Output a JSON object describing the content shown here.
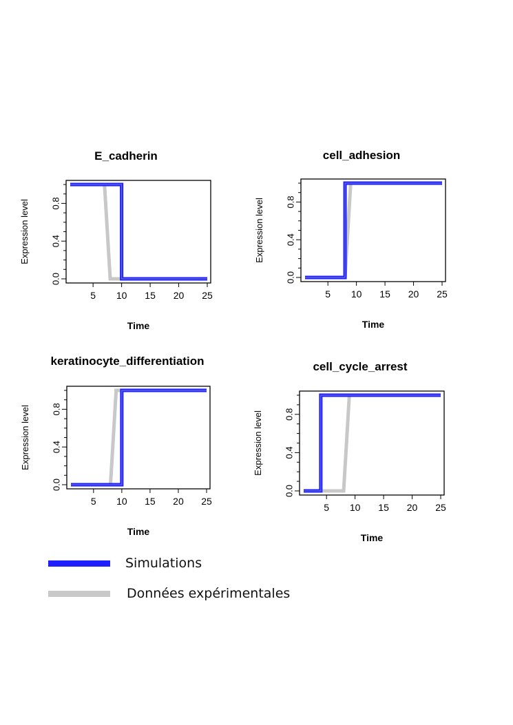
{
  "chart_data": [
    {
      "type": "line",
      "title": "E_cadherin",
      "xlabel": "Time",
      "ylabel": "Expression level",
      "xticks": [
        5,
        10,
        15,
        20,
        25
      ],
      "yticks": [
        0.0,
        0.4,
        0.8
      ],
      "ytick_labels": [
        "0.0",
        "0.4",
        "0.8"
      ],
      "xlim": [
        1,
        25
      ],
      "ylim": [
        0,
        1
      ],
      "series": [
        {
          "name": "Simulations",
          "x": [
            1,
            10,
            10,
            25
          ],
          "y": [
            1,
            1,
            0,
            0
          ]
        },
        {
          "name": "Données expérimentales",
          "x": [
            1,
            7,
            8,
            25
          ],
          "y": [
            1,
            1,
            0,
            0
          ]
        }
      ]
    },
    {
      "type": "line",
      "title": "cell_adhesion",
      "xlabel": "Time",
      "ylabel": "Expression level",
      "xticks": [
        5,
        10,
        15,
        20,
        25
      ],
      "yticks": [
        0.0,
        0.4,
        0.8
      ],
      "ytick_labels": [
        "0.0",
        "0.4",
        "0.8"
      ],
      "xlim": [
        1,
        25
      ],
      "ylim": [
        0,
        1
      ],
      "series": [
        {
          "name": "Simulations",
          "x": [
            1,
            8,
            8,
            25
          ],
          "y": [
            0,
            0,
            1,
            1
          ]
        },
        {
          "name": "Données expérimentales",
          "x": [
            1,
            8,
            9,
            25
          ],
          "y": [
            0,
            0,
            1,
            1
          ]
        }
      ]
    },
    {
      "type": "line",
      "title": "keratinocyte_differentiation",
      "xlabel": "Time",
      "ylabel": "Expression level",
      "xticks": [
        5,
        10,
        15,
        20,
        25
      ],
      "yticks": [
        0.0,
        0.4,
        0.8
      ],
      "ytick_labels": [
        "0.0",
        "0.4",
        "0.8"
      ],
      "xlim": [
        1,
        25
      ],
      "ylim": [
        0,
        1
      ],
      "series": [
        {
          "name": "Simulations",
          "x": [
            1,
            10,
            10,
            25
          ],
          "y": [
            0,
            0,
            1,
            1
          ]
        },
        {
          "name": "Données expérimentales",
          "x": [
            1,
            8,
            9,
            25
          ],
          "y": [
            0,
            0,
            1,
            1
          ]
        }
      ]
    },
    {
      "type": "line",
      "title": "cell_cycle_arrest",
      "xlabel": "Time",
      "ylabel": "Expression level",
      "xticks": [
        5,
        10,
        15,
        20,
        25
      ],
      "yticks": [
        0.0,
        0.4,
        0.8
      ],
      "ytick_labels": [
        "0.0",
        "0.4",
        "0.8"
      ],
      "xlim": [
        1,
        25
      ],
      "ylim": [
        0,
        1
      ],
      "series": [
        {
          "name": "Simulations",
          "x": [
            1,
            4,
            4,
            25
          ],
          "y": [
            0,
            0,
            1,
            1
          ]
        },
        {
          "name": "Données expérimentales",
          "x": [
            1,
            8,
            9,
            25
          ],
          "y": [
            0,
            0,
            1,
            1
          ]
        }
      ]
    }
  ],
  "legend": {
    "entries": [
      {
        "label": "Simulations",
        "color": "#1f1fff"
      },
      {
        "label": "Données expérimentales",
        "color": "#c8c8c8"
      }
    ]
  },
  "colors": {
    "sim_line": "#1f1fff",
    "exp_line": "#c8c8c8",
    "overlap_line": "#7a86d6"
  }
}
